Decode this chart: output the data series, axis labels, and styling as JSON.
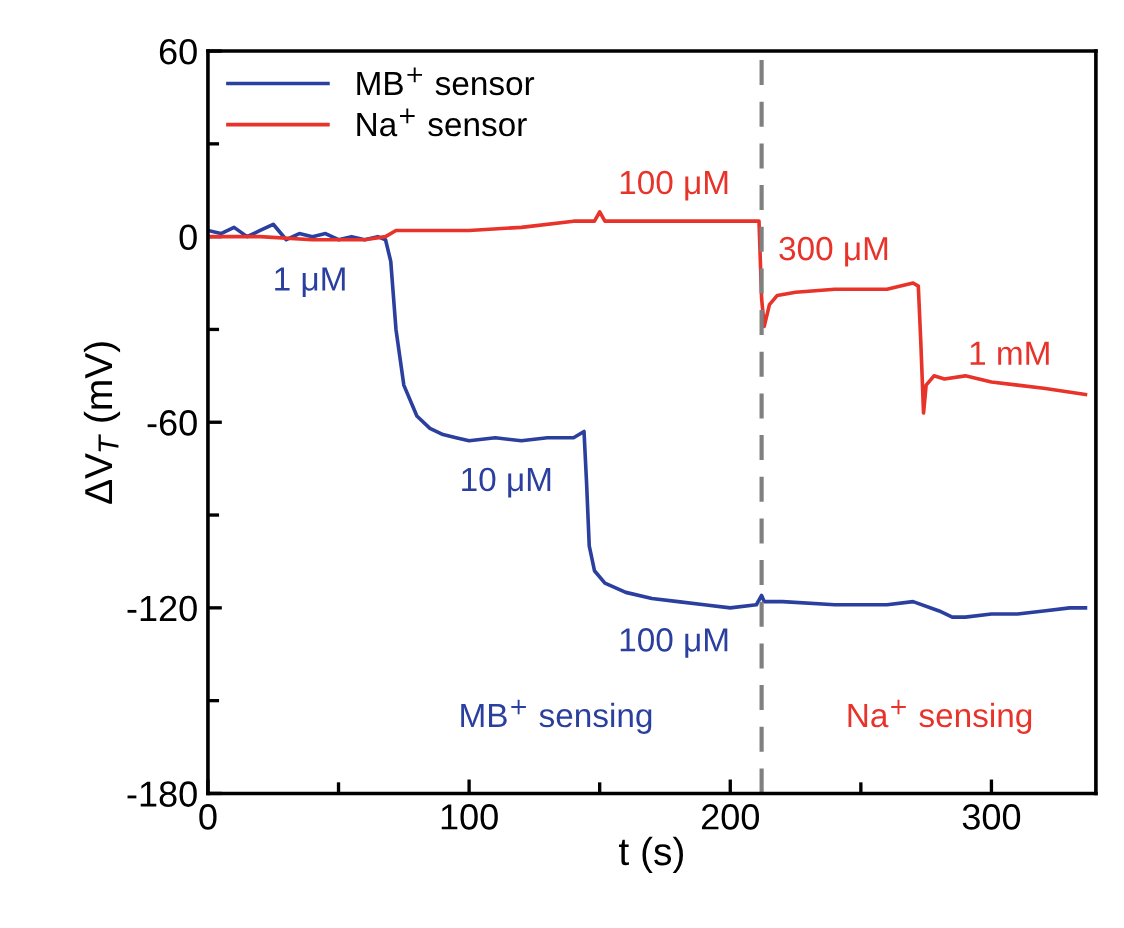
{
  "chart_data": {
    "type": "line",
    "xlabel": "t (s)",
    "ylabel": "ΔV$_{T}$ (mV)",
    "xlim": [
      0,
      340
    ],
    "ylim": [
      -180,
      60
    ],
    "xticks": [
      0,
      100,
      200,
      300
    ],
    "yticks": [
      60,
      0,
      -60,
      -120,
      -180
    ],
    "legend": "top left",
    "grid": false,
    "marker": "none",
    "line_style": "solid",
    "series": [
      {
        "name": "MB$^{+}$ sensor",
        "color": "#2b3f9e",
        "x": [
          0,
          5,
          10,
          15,
          20,
          25,
          30,
          35,
          40,
          45,
          50,
          55,
          60,
          65,
          68,
          70,
          72,
          75,
          80,
          85,
          90,
          95,
          100,
          110,
          120,
          130,
          140,
          144,
          145,
          146,
          148,
          152,
          160,
          170,
          180,
          190,
          200,
          210,
          212,
          213,
          214,
          220,
          240,
          260,
          270,
          280,
          285,
          290,
          300,
          310,
          320,
          330,
          336
        ],
        "values": [
          2,
          1,
          3,
          0,
          2,
          4,
          -1,
          1,
          0,
          1,
          -1,
          0,
          -1,
          0,
          -1,
          -8,
          -30,
          -48,
          -58,
          -62,
          -64,
          -65,
          -66,
          -65,
          -66,
          -65,
          -65,
          -63,
          -80,
          -100,
          -108,
          -112,
          -115,
          -117,
          -118,
          -119,
          -120,
          -119,
          -116,
          -118,
          -118,
          -118,
          -119,
          -119,
          -118,
          -121,
          -123,
          -123,
          -122,
          -122,
          -121,
          -120,
          -120
        ]
      },
      {
        "name": "Na$^{+}$ sensor",
        "color": "#e8332a",
        "x": [
          0,
          20,
          40,
          60,
          68,
          72,
          80,
          100,
          120,
          140,
          148,
          150,
          152,
          170,
          190,
          211,
          212,
          213,
          215,
          218,
          225,
          240,
          260,
          270,
          272,
          273,
          274,
          275,
          278,
          282,
          290,
          300,
          310,
          320,
          336
        ],
        "values": [
          0,
          0,
          -1,
          -1,
          0,
          2,
          2,
          2,
          3,
          5,
          5,
          8,
          5,
          5,
          5,
          5,
          -20,
          -29,
          -22,
          -19,
          -18,
          -17,
          -17,
          -15,
          -16,
          -35,
          -57,
          -48,
          -45,
          -46,
          -45,
          -47,
          -48,
          -49,
          -51
        ]
      }
    ],
    "ref_lines": [
      {
        "axis": "x",
        "value": 212,
        "label": null,
        "color": "#808080",
        "line_style": "dashed"
      }
    ],
    "annotations": [
      "1 μM",
      "100 μM",
      "300 μM",
      "1 mM",
      "10 μM",
      "100 μM",
      "MB$^{+}$ sensing",
      "Na$^{+}$ sensing"
    ]
  }
}
